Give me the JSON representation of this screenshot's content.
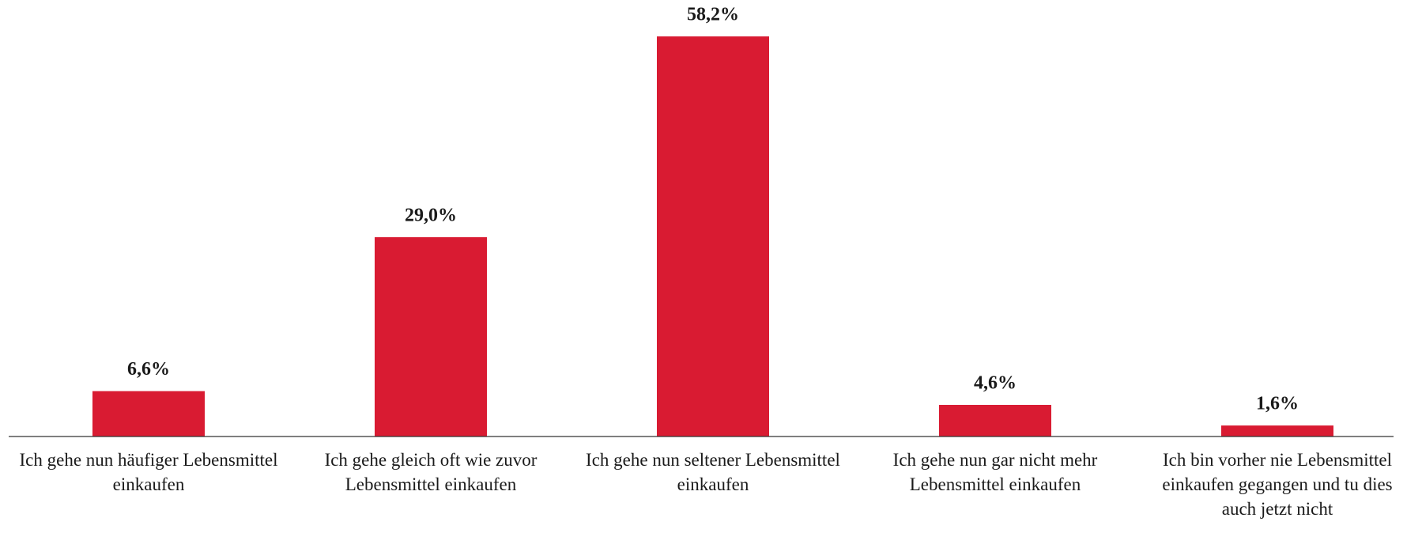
{
  "chart_data": {
    "type": "bar",
    "categories": [
      "Ich gehe nun häufiger Lebensmittel einkaufen",
      "Ich gehe gleich oft wie zuvor Lebensmittel einkaufen",
      "Ich gehe nun seltener Lebensmittel einkaufen",
      "Ich gehe nun gar nicht mehr Lebensmittel einkaufen",
      "Ich bin vorher nie Lebensmittel einkaufen gegangen und tu dies auch jetzt nicht"
    ],
    "values": [
      6.6,
      29.0,
      58.2,
      4.6,
      1.6
    ],
    "value_labels": [
      "6,6%",
      "29,0%",
      "58,2%",
      "4,6%",
      "1,6%"
    ],
    "color": "#d91b32",
    "ylim": [
      0,
      60
    ]
  }
}
